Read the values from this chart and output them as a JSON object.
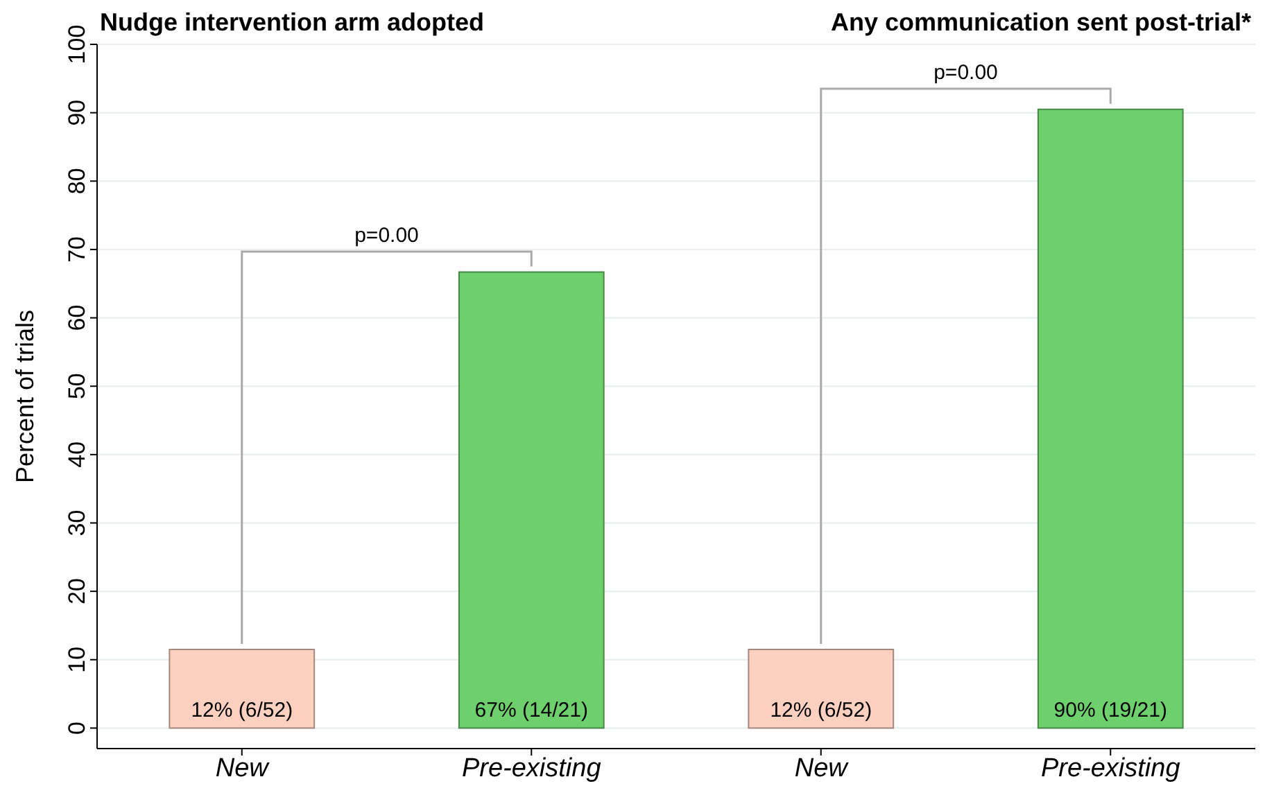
{
  "chart_data": [
    {
      "type": "bar",
      "title": "Nudge intervention arm adopted",
      "ylabel": "Percent of trials",
      "categories": [
        "New",
        "Pre-existing"
      ],
      "values": [
        11.5,
        66.7
      ],
      "colors": [
        "#fdd0c0",
        "#6dd06d"
      ],
      "value_labels": [
        "12% (6/52)",
        "67% (14/21)"
      ],
      "ylim": [
        -3,
        100
      ],
      "yticks": [
        0,
        10,
        20,
        30,
        40,
        50,
        60,
        70,
        80,
        90,
        100
      ],
      "grid": "y",
      "annotations": [
        "p=0.00"
      ]
    },
    {
      "type": "bar",
      "title": "Any communication sent post-trial*",
      "categories": [
        "New",
        "Pre-existing"
      ],
      "values": [
        11.5,
        90.5
      ],
      "colors": [
        "#fdd0c0",
        "#6dd06d"
      ],
      "value_labels": [
        "12% (6/52)",
        "90% (19/21)"
      ],
      "ylim": [
        -3,
        100
      ],
      "yticks": [
        0,
        10,
        20,
        30,
        40,
        50,
        60,
        70,
        80,
        90,
        100
      ],
      "grid": "y",
      "tick_labels": "x",
      "annotations": [
        "p=0.00"
      ]
    }
  ]
}
